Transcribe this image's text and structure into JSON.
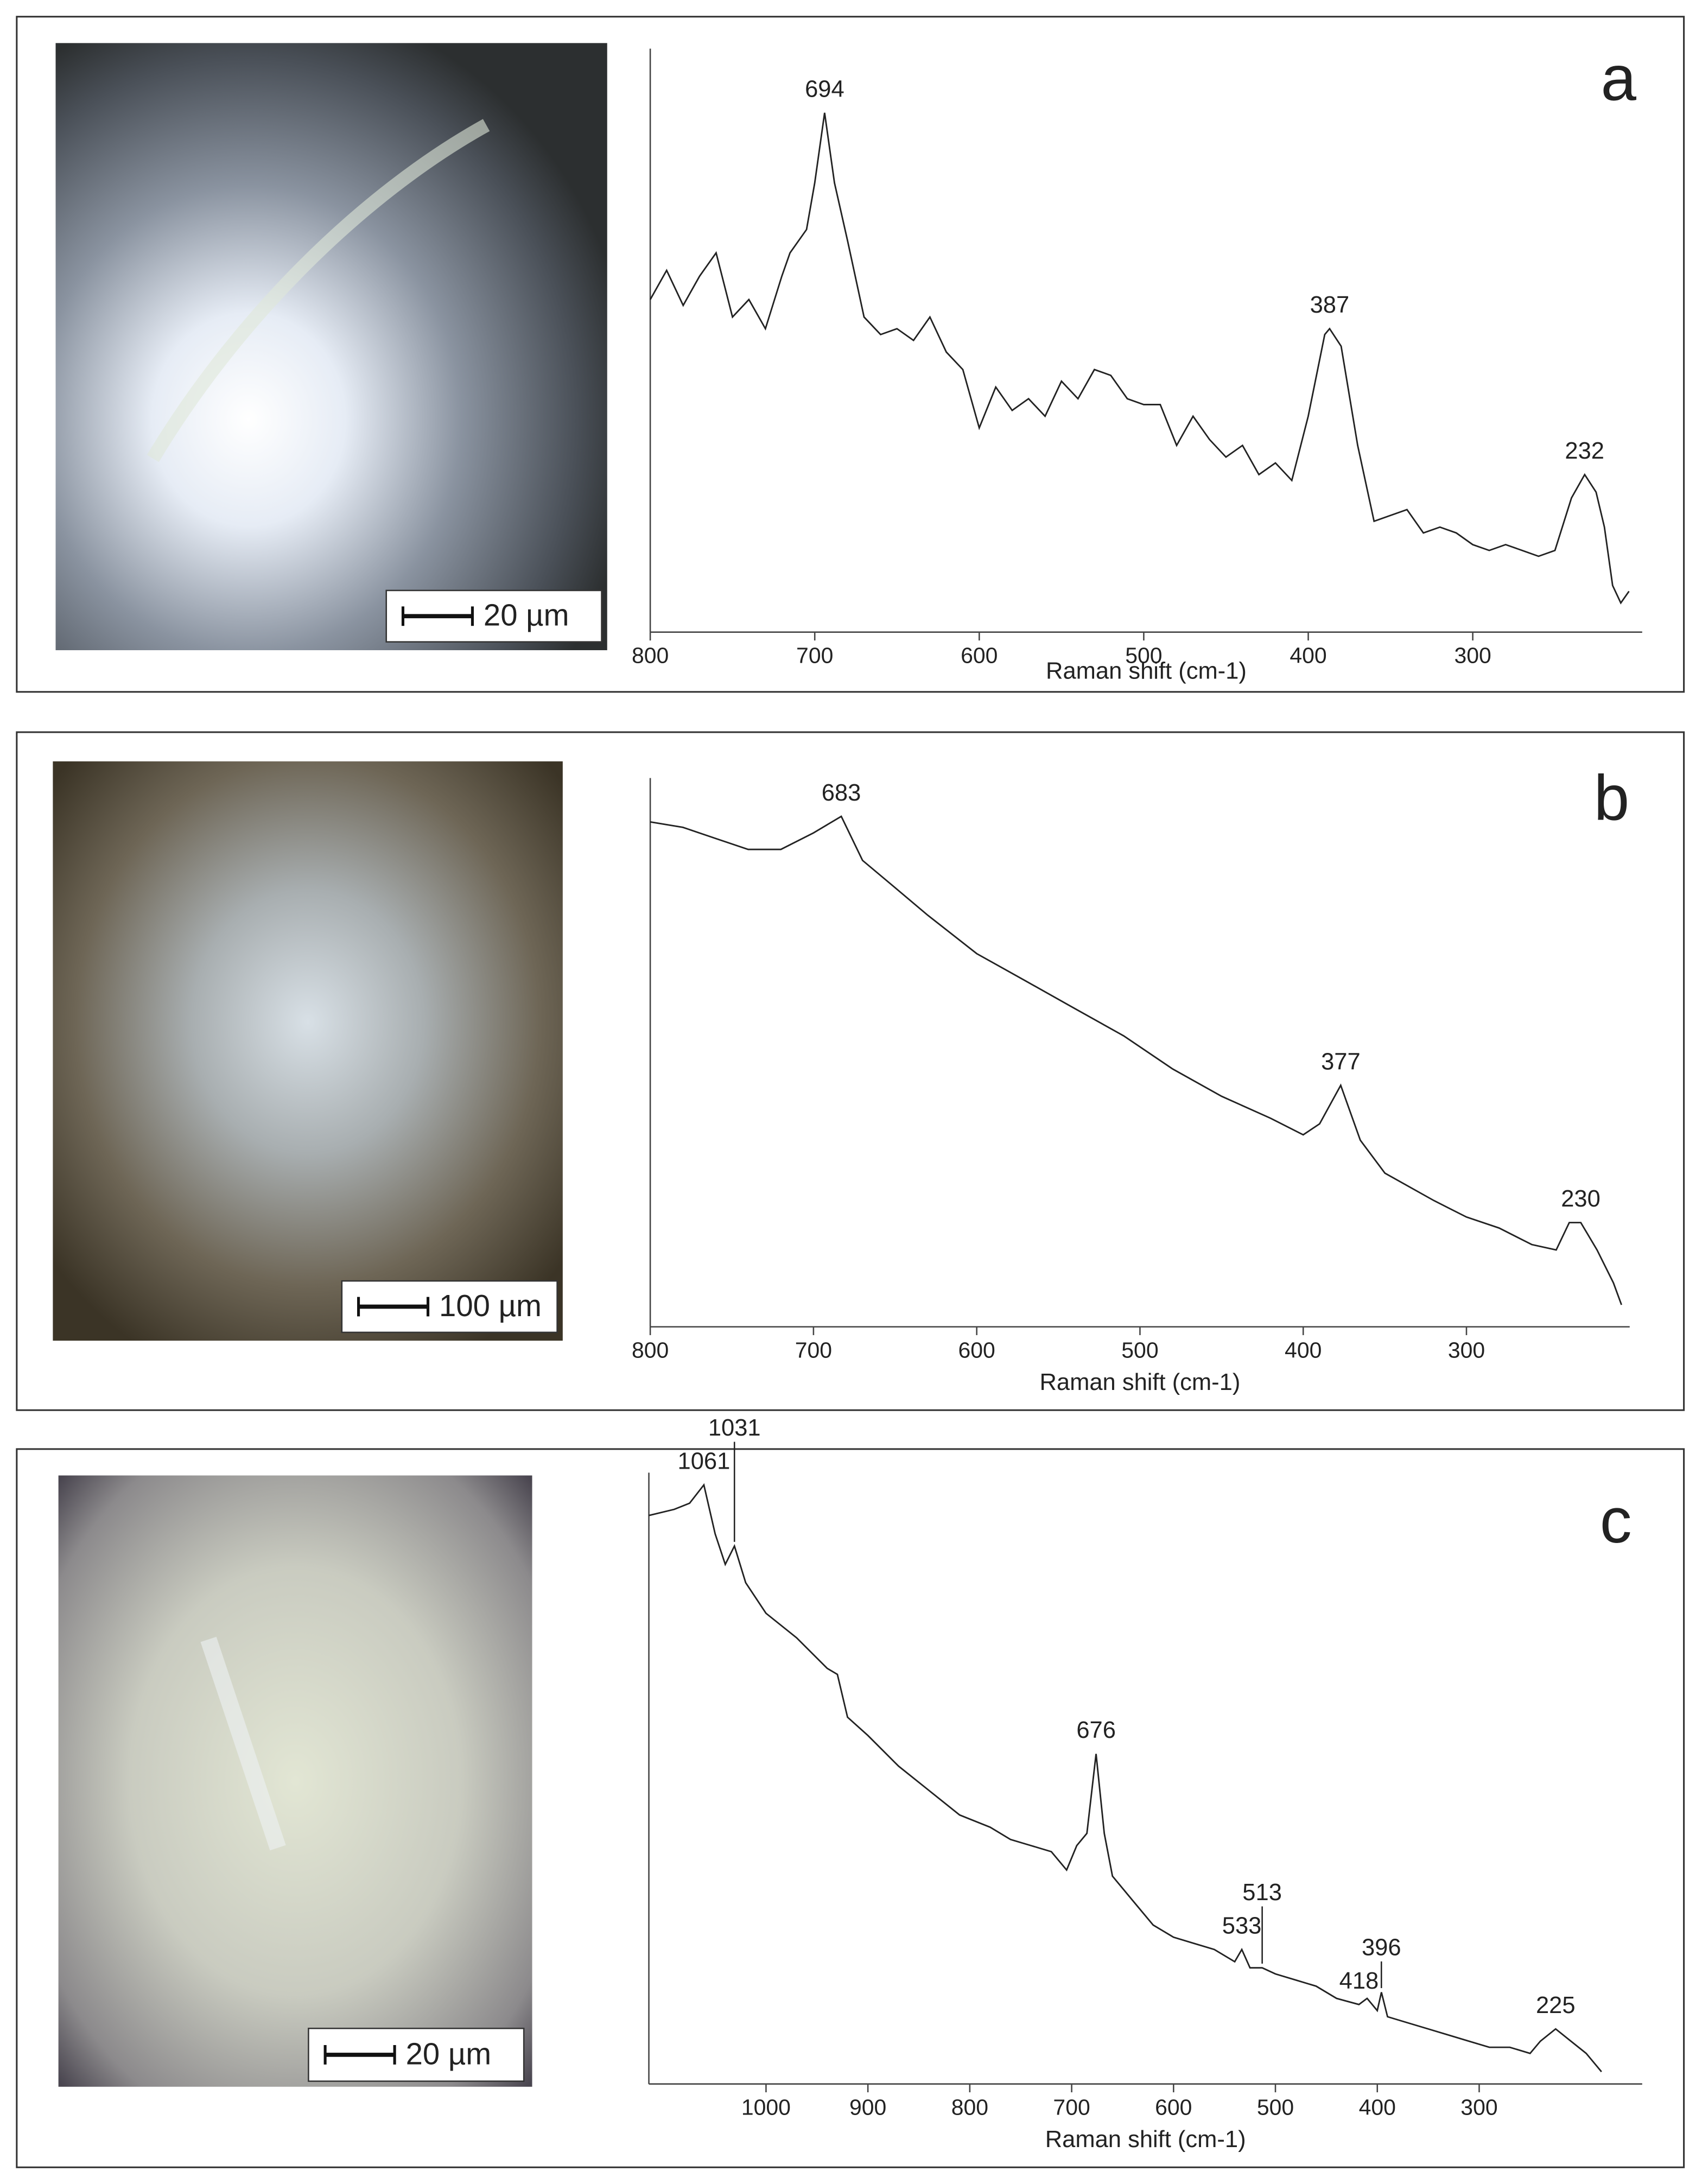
{
  "chart_data": [
    {
      "type": "line",
      "panel_label": "a",
      "scale_bar": "20 µm",
      "xlabel": "Raman shift (cm-1)",
      "xlim": [
        800,
        197
      ],
      "xticks": [
        800,
        700,
        600,
        500,
        400,
        300
      ],
      "ylim": [
        0,
        100
      ],
      "color": "#222222",
      "x": [
        800,
        790,
        780,
        770,
        760,
        750,
        740,
        730,
        720,
        715,
        705,
        700,
        694,
        688,
        680,
        670,
        660,
        650,
        640,
        630,
        620,
        610,
        600,
        590,
        580,
        570,
        560,
        550,
        540,
        530,
        520,
        510,
        500,
        490,
        480,
        470,
        460,
        450,
        440,
        430,
        420,
        410,
        400,
        390,
        387,
        380,
        370,
        360,
        350,
        340,
        330,
        320,
        310,
        300,
        290,
        280,
        270,
        260,
        250,
        240,
        232,
        225,
        220,
        215,
        210,
        205
      ],
      "values": [
        57,
        62,
        56,
        61,
        65,
        54,
        57,
        52,
        61,
        65,
        69,
        77,
        89,
        77,
        67,
        54,
        51,
        52,
        50,
        54,
        48,
        45,
        35,
        42,
        38,
        40,
        37,
        43,
        40,
        45,
        44,
        40,
        39,
        39,
        32,
        37,
        33,
        30,
        32,
        27,
        29,
        26,
        37,
        51,
        52,
        49,
        32,
        19,
        20,
        21,
        17,
        18,
        17,
        15,
        14,
        15,
        14,
        13,
        14,
        23,
        27,
        24,
        18,
        8,
        5,
        7
      ],
      "peaks": [
        694,
        387,
        232
      ]
    },
    {
      "type": "line",
      "panel_label": "b",
      "scale_bar": "100 µm",
      "xlabel": "Raman shift (cm-1)",
      "xlim": [
        800,
        200
      ],
      "xticks": [
        800,
        700,
        600,
        500,
        400,
        300
      ],
      "ylim": [
        0,
        100
      ],
      "color": "#222222",
      "x": [
        800,
        780,
        760,
        740,
        720,
        700,
        683,
        670,
        650,
        630,
        600,
        570,
        540,
        510,
        480,
        450,
        420,
        400,
        390,
        377,
        365,
        350,
        320,
        300,
        280,
        260,
        245,
        237,
        230,
        220,
        210,
        205
      ],
      "values": [
        92,
        91,
        89,
        87,
        87,
        90,
        93,
        85,
        80,
        75,
        68,
        63,
        58,
        53,
        47,
        42,
        38,
        35,
        37,
        44,
        34,
        28,
        23,
        20,
        18,
        15,
        14,
        19,
        19,
        14,
        8,
        4
      ],
      "peaks": [
        683,
        377,
        230
      ]
    },
    {
      "type": "line",
      "panel_label": "c",
      "scale_bar": "20 µm",
      "xlabel": "Raman shift (cm-1)",
      "xlim": [
        1115,
        140
      ],
      "xticks": [
        1000,
        900,
        800,
        700,
        600,
        500,
        400,
        300
      ],
      "ylim": [
        0,
        100
      ],
      "color": "#222222",
      "x": [
        1115,
        1090,
        1075,
        1061,
        1050,
        1040,
        1031,
        1020,
        1000,
        970,
        940,
        930,
        920,
        900,
        870,
        840,
        810,
        780,
        760,
        740,
        720,
        705,
        695,
        685,
        676,
        668,
        660,
        640,
        620,
        600,
        580,
        560,
        540,
        533,
        525,
        513,
        500,
        480,
        460,
        440,
        418,
        410,
        400,
        396,
        390,
        370,
        350,
        330,
        310,
        290,
        270,
        250,
        240,
        225,
        210,
        195,
        180
      ],
      "values": [
        93,
        94,
        95,
        98,
        90,
        85,
        88,
        82,
        77,
        73,
        68,
        67,
        60,
        57,
        52,
        48,
        44,
        42,
        40,
        39,
        38,
        35,
        39,
        41,
        54,
        41,
        34,
        30,
        26,
        24,
        23,
        22,
        20,
        22,
        19,
        19,
        18,
        17,
        16,
        14,
        13,
        14,
        12,
        15,
        11,
        10,
        9,
        8,
        7,
        6,
        6,
        5,
        7,
        9,
        7,
        5,
        2
      ],
      "peaks": [
        1061,
        1031,
        676,
        533,
        513,
        418,
        396,
        225
      ]
    }
  ]
}
